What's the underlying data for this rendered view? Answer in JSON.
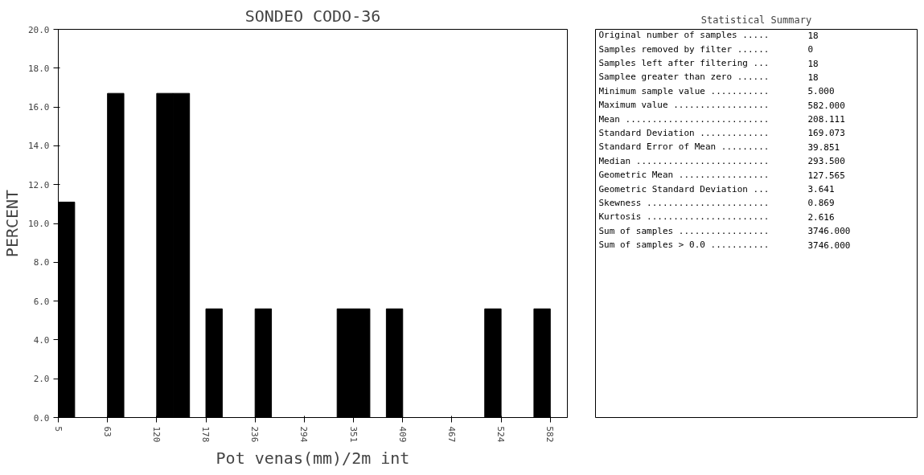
{
  "chart_data": [
    {
      "type": "histogram",
      "title": "SONDEO CODO-36",
      "xlabel": "Pot venas(mm)/2m int",
      "ylabel": "PERCENT",
      "color": "#000000",
      "bins": [
        5.0,
        24.2,
        43.5,
        62.7,
        81.9,
        101.2,
        120.4,
        139.6,
        158.9,
        178.1,
        197.3,
        216.6,
        235.8,
        255.0,
        274.3,
        293.5,
        312.7,
        332.0,
        351.2,
        370.4,
        389.7,
        408.9,
        428.1,
        447.4,
        466.6,
        485.8,
        505.1,
        524.3,
        543.5,
        562.8,
        582.0
      ],
      "values": [
        11.1,
        0,
        0,
        16.7,
        0,
        0,
        16.7,
        16.7,
        0,
        5.6,
        0,
        0,
        5.6,
        0,
        0,
        0,
        0,
        5.6,
        5.6,
        0,
        5.6,
        0,
        0,
        0,
        0,
        0,
        5.6,
        0,
        0,
        5.6
      ],
      "xlim": [
        5,
        602
      ],
      "xticks": [
        5,
        {
          "value": 62.7,
          "label": "63"
        },
        {
          "value": 120.4,
          "label": "120"
        },
        {
          "value": 178.1,
          "label": "178"
        },
        {
          "value": 235.8,
          "label": "236"
        },
        {
          "value": 293.5,
          "label": "294"
        },
        {
          "value": 351.2,
          "label": "351"
        },
        {
          "value": 408.9,
          "label": "409"
        },
        {
          "value": 466.6,
          "label": "467"
        },
        {
          "value": 524.3,
          "label": "524"
        },
        582
      ],
      "ylim": [
        0,
        20
      ],
      "yticks": [
        {
          "value": 0,
          "label": "0.0"
        },
        {
          "value": 2,
          "label": "2.0"
        },
        {
          "value": 4,
          "label": "4.0"
        },
        {
          "value": 6,
          "label": "6.0"
        },
        {
          "value": 8,
          "label": "8.0"
        },
        {
          "value": 10,
          "label": "10.0"
        },
        {
          "value": 12,
          "label": "12.0"
        },
        {
          "value": 14,
          "label": "14.0"
        },
        {
          "value": 16,
          "label": "16.0"
        },
        {
          "value": 18,
          "label": "18.0"
        },
        {
          "value": 20,
          "label": "20.0"
        }
      ],
      "grid": false
    },
    {
      "type": "other",
      "title": "Statistical Summary",
      "annotations": [
        "Original number of samples ..... 18",
        "Samples removed by filter ...... 0",
        "Samples left after filtering ... 18",
        "Samplee greater than zero ...... 18",
        "Minimum sample value ........... 5.000",
        "Maximum value .................. 582.000",
        "Mean ........................... 208.111",
        "Standard Deviation ............. 169.073",
        "Standard Error of Mean ......... 39.851",
        "Median ......................... 293.500",
        "Geometric Mean ................. 127.565",
        "Geometric Standard Deviation ... 3.641",
        "Skewness ....................... 0.869",
        "Kurtosis ....................... 2.616",
        "Sum of samples ................. 3746.000",
        "Sum of samples > 0.0 ........... 3746.000"
      ]
    }
  ]
}
